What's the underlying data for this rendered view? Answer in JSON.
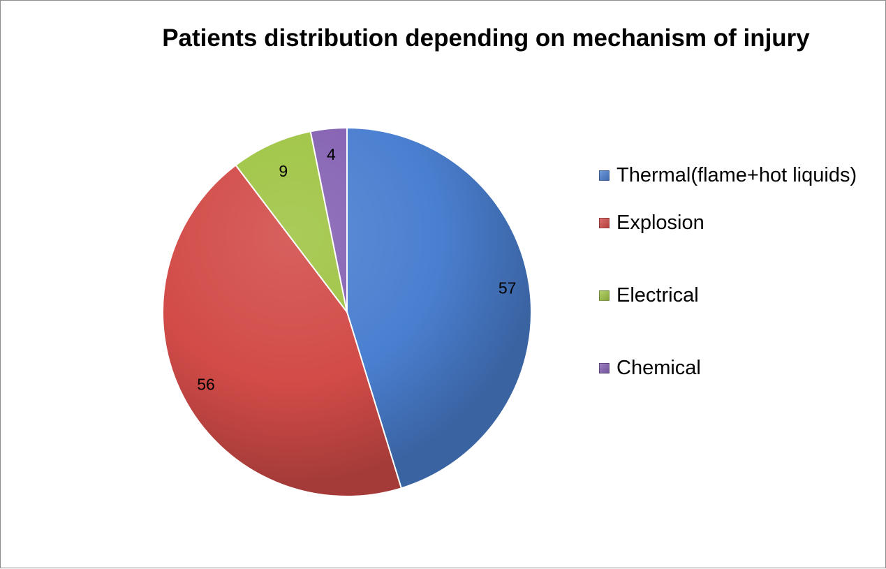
{
  "chart_data": {
    "type": "pie",
    "title": "Patients distribution depending on mechanism of injury",
    "categories": [
      "Thermal(flame+hot liquids)",
      "Explosion",
      "Electrical",
      "Chemical"
    ],
    "values": [
      57,
      56,
      9,
      4
    ],
    "data_labels": [
      "57",
      "56",
      "9",
      "4"
    ],
    "colors": [
      "#4a7fd0",
      "#d24b48",
      "#9fc444",
      "#8562b3"
    ],
    "start_angle_deg": 0,
    "direction": "clockwise",
    "legend_position": "right",
    "grid": false
  }
}
